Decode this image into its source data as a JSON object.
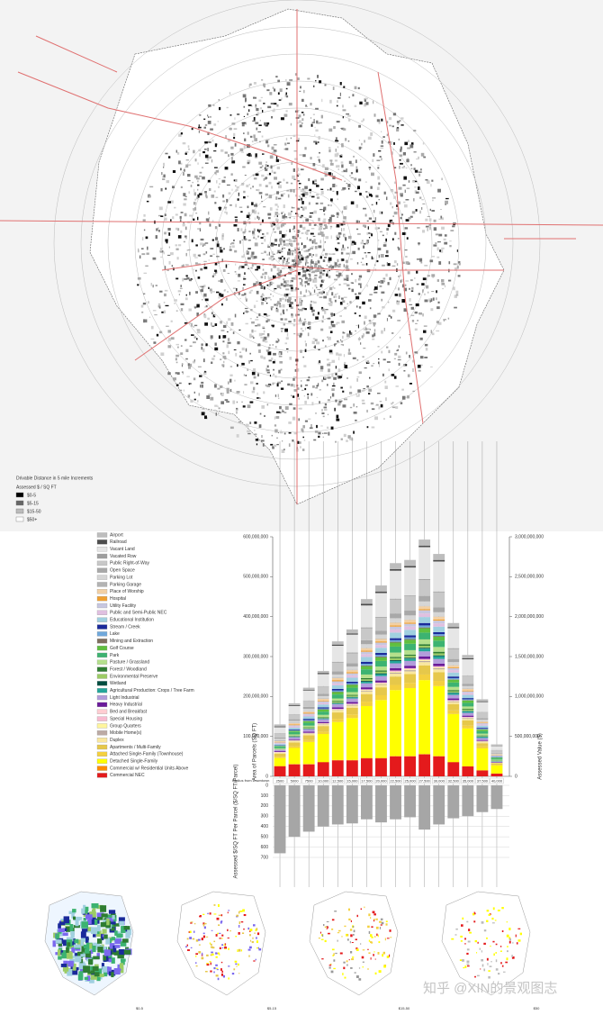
{
  "map": {
    "title": "Drivable Distance in 5 mile Increments",
    "legend_title": "Assessed $ / SQ FT",
    "legend": [
      "$0-5",
      "$5-15",
      "$15-50",
      "$50+"
    ]
  },
  "chart_data": [
    {
      "type": "bar",
      "stacked": true,
      "x_label": "Radius from Downtown",
      "y_label": "Area of Parcels (SQ FT)",
      "y2_label": "Assessed Value ($)",
      "categories": [
        "2500",
        "5000",
        "7500",
        "10,000",
        "12,500",
        "15,000",
        "17,500",
        "20,000",
        "22,500",
        "25,000",
        "27,500",
        "30,000",
        "32,500",
        "35,000",
        "37,500",
        "40,000"
      ],
      "series": [
        {
          "name": "Airport",
          "color": "#bdbdbd",
          "values": [
            5000000,
            5000000,
            5000000,
            5000000,
            8000000,
            10000000,
            12000000,
            15000000,
            15000000,
            15000000,
            15000000,
            15000000,
            10000000,
            8000000,
            5000000,
            3000000
          ]
        },
        {
          "name": "Railroad",
          "color": "#4d4d4d",
          "values": [
            2000000,
            2000000,
            2000000,
            3000000,
            3000000,
            3000000,
            4000000,
            4000000,
            4000000,
            4000000,
            4000000,
            4000000,
            3000000,
            3000000,
            2000000,
            1000000
          ]
        },
        {
          "name": "Vacant Land",
          "color": "#e6e6e6",
          "values": [
            15000000,
            20000000,
            25000000,
            30000000,
            40000000,
            45000000,
            55000000,
            60000000,
            70000000,
            70000000,
            80000000,
            75000000,
            50000000,
            40000000,
            25000000,
            10000000
          ]
        },
        {
          "name": "Vacated Row",
          "color": "#9e9e9e",
          "values": [
            1000000,
            1000000,
            1000000,
            1000000,
            2000000,
            2000000,
            2000000,
            2000000,
            2000000,
            2000000,
            2000000,
            2000000,
            2000000,
            1000000,
            1000000,
            1000000
          ]
        },
        {
          "name": "Public Right-of-Way",
          "color": "#c8c8c8",
          "values": [
            10000000,
            12000000,
            15000000,
            18000000,
            22000000,
            25000000,
            30000000,
            32000000,
            35000000,
            36000000,
            40000000,
            38000000,
            25000000,
            20000000,
            14000000,
            6000000
          ]
        },
        {
          "name": "Open Space",
          "color": "#a8a8a8",
          "values": [
            3000000,
            4000000,
            5000000,
            6000000,
            8000000,
            8000000,
            10000000,
            10000000,
            12000000,
            12000000,
            14000000,
            12000000,
            8000000,
            6000000,
            4000000,
            2000000
          ]
        },
        {
          "name": "Parking Lot",
          "color": "#d6d6d6",
          "values": [
            4000000,
            5000000,
            6000000,
            6000000,
            8000000,
            8000000,
            9000000,
            10000000,
            10000000,
            10000000,
            11000000,
            10000000,
            7000000,
            6000000,
            4000000,
            2000000
          ]
        },
        {
          "name": "Parking Garage",
          "color": "#b3b3b3",
          "values": [
            2000000,
            1000000,
            1000000,
            1000000,
            1000000,
            1000000,
            1000000,
            1000000,
            1000000,
            1000000,
            1000000,
            1000000,
            1000000,
            1000000,
            1000000,
            0
          ]
        },
        {
          "name": "Place of Worship",
          "color": "#f2d0a4",
          "values": [
            2000000,
            3000000,
            3000000,
            4000000,
            5000000,
            5000000,
            6000000,
            6000000,
            7000000,
            7000000,
            7000000,
            7000000,
            5000000,
            4000000,
            3000000,
            1000000
          ]
        },
        {
          "name": "Hospital",
          "color": "#f0a030",
          "values": [
            1000000,
            2000000,
            2000000,
            2000000,
            3000000,
            3000000,
            3000000,
            3000000,
            3000000,
            3000000,
            3000000,
            3000000,
            2000000,
            2000000,
            1000000,
            1000000
          ]
        },
        {
          "name": "Utility Facility",
          "color": "#c7c7e0",
          "values": [
            2000000,
            3000000,
            3000000,
            4000000,
            5000000,
            5000000,
            6000000,
            6000000,
            7000000,
            7000000,
            8000000,
            7000000,
            5000000,
            4000000,
            3000000,
            1000000
          ]
        },
        {
          "name": "Public and Semi-Public NEC",
          "color": "#e0c0e0",
          "values": [
            2000000,
            3000000,
            4000000,
            4000000,
            5000000,
            6000000,
            7000000,
            7000000,
            8000000,
            8000000,
            9000000,
            8000000,
            6000000,
            5000000,
            3000000,
            1000000
          ]
        },
        {
          "name": "Educational Institution",
          "color": "#a0d0e0",
          "values": [
            3000000,
            5000000,
            6000000,
            7000000,
            9000000,
            10000000,
            12000000,
            13000000,
            14000000,
            14000000,
            15000000,
            14000000,
            10000000,
            8000000,
            5000000,
            2000000
          ]
        },
        {
          "name": "Stream / Creek",
          "color": "#1a2a9a",
          "values": [
            1000000,
            2000000,
            3000000,
            3000000,
            4000000,
            4000000,
            5000000,
            5000000,
            5000000,
            5000000,
            6000000,
            5000000,
            4000000,
            3000000,
            2000000,
            1000000
          ]
        },
        {
          "name": "Lake",
          "color": "#6fa8dc",
          "values": [
            1000000,
            1000000,
            2000000,
            2000000,
            3000000,
            3000000,
            4000000,
            4000000,
            4000000,
            4000000,
            5000000,
            4000000,
            3000000,
            2000000,
            2000000,
            1000000
          ]
        },
        {
          "name": "Mining and Extraction",
          "color": "#7f6f5f",
          "values": [
            0,
            0,
            1000000,
            1000000,
            1000000,
            1000000,
            2000000,
            2000000,
            2000000,
            2000000,
            2000000,
            2000000,
            1000000,
            1000000,
            1000000,
            0
          ]
        },
        {
          "name": "Golf Course",
          "color": "#5fbf3f",
          "values": [
            2000000,
            3000000,
            4000000,
            5000000,
            6000000,
            7000000,
            8000000,
            9000000,
            10000000,
            10000000,
            11000000,
            10000000,
            7000000,
            6000000,
            4000000,
            2000000
          ]
        },
        {
          "name": "Park",
          "color": "#3cb371",
          "values": [
            4000000,
            6000000,
            7000000,
            8000000,
            10000000,
            11000000,
            13000000,
            14000000,
            15000000,
            16000000,
            17000000,
            16000000,
            11000000,
            9000000,
            6000000,
            3000000
          ]
        },
        {
          "name": "Pasture / Grassland",
          "color": "#b5e08c",
          "values": [
            2000000,
            3000000,
            4000000,
            5000000,
            6000000,
            7000000,
            9000000,
            10000000,
            11000000,
            11000000,
            12000000,
            12000000,
            8000000,
            6000000,
            4000000,
            2000000
          ]
        },
        {
          "name": "Forest / Woodland",
          "color": "#2e7d32",
          "values": [
            0,
            1000000,
            1000000,
            1000000,
            2000000,
            2000000,
            3000000,
            3000000,
            3000000,
            3000000,
            4000000,
            4000000,
            3000000,
            2000000,
            1000000,
            1000000
          ]
        },
        {
          "name": "Environmental Preserve",
          "color": "#9ccc65",
          "values": [
            1000000,
            1000000,
            2000000,
            2000000,
            3000000,
            3000000,
            4000000,
            4000000,
            5000000,
            5000000,
            5000000,
            5000000,
            3000000,
            3000000,
            2000000,
            1000000
          ]
        },
        {
          "name": "Wetland",
          "color": "#004d40",
          "values": [
            0,
            1000000,
            1000000,
            1000000,
            1000000,
            1000000,
            2000000,
            2000000,
            2000000,
            2000000,
            2000000,
            2000000,
            1000000,
            1000000,
            1000000,
            0
          ]
        },
        {
          "name": "Agricultural Production: Crops / Tree Farm",
          "color": "#26a69a",
          "values": [
            0,
            1000000,
            1000000,
            2000000,
            2000000,
            3000000,
            4000000,
            5000000,
            6000000,
            6000000,
            7000000,
            7000000,
            5000000,
            4000000,
            3000000,
            1000000
          ]
        },
        {
          "name": "Light Industrial",
          "color": "#b39ddb",
          "values": [
            4000000,
            5000000,
            6000000,
            7000000,
            8000000,
            9000000,
            10000000,
            11000000,
            12000000,
            12000000,
            13000000,
            12000000,
            9000000,
            7000000,
            5000000,
            2000000
          ]
        },
        {
          "name": "Heavy Industrial",
          "color": "#6a1b9a",
          "values": [
            2000000,
            2000000,
            3000000,
            3000000,
            4000000,
            4000000,
            5000000,
            5000000,
            6000000,
            6000000,
            6000000,
            6000000,
            4000000,
            3000000,
            2000000,
            1000000
          ]
        },
        {
          "name": "Bed and Breakfast",
          "color": "#ffcdd2",
          "values": [
            0,
            0,
            0,
            0,
            0,
            0,
            0,
            0,
            0,
            0,
            0,
            0,
            0,
            0,
            0,
            0
          ]
        },
        {
          "name": "Special Housing",
          "color": "#f8bbd0",
          "values": [
            1000000,
            1000000,
            1000000,
            1000000,
            2000000,
            2000000,
            2000000,
            2000000,
            3000000,
            3000000,
            3000000,
            3000000,
            2000000,
            2000000,
            1000000,
            0
          ]
        },
        {
          "name": "Group Quarters",
          "color": "#fff59d",
          "values": [
            1000000,
            1000000,
            1000000,
            1000000,
            1000000,
            1000000,
            2000000,
            2000000,
            2000000,
            2000000,
            2000000,
            2000000,
            1000000,
            1000000,
            1000000,
            0
          ]
        },
        {
          "name": "Mobile Home(s)",
          "color": "#bcaaa4",
          "values": [
            0,
            1000000,
            1000000,
            1000000,
            1000000,
            2000000,
            2000000,
            2000000,
            3000000,
            3000000,
            3000000,
            3000000,
            2000000,
            2000000,
            1000000,
            0
          ]
        },
        {
          "name": "Duplex",
          "color": "#f9e79f",
          "values": [
            2000000,
            3000000,
            3000000,
            4000000,
            5000000,
            5000000,
            6000000,
            6000000,
            7000000,
            7000000,
            8000000,
            7000000,
            5000000,
            4000000,
            3000000,
            1000000
          ]
        },
        {
          "name": "Apartments / Multi-Family",
          "color": "#e6c84a",
          "values": [
            8000000,
            10000000,
            12000000,
            14000000,
            16000000,
            17000000,
            19000000,
            20000000,
            21000000,
            22000000,
            23000000,
            22000000,
            16000000,
            13000000,
            8000000,
            4000000
          ]
        },
        {
          "name": "Attached Single-Family (Townhouse)",
          "color": "#f4d03f",
          "values": [
            3000000,
            4000000,
            5000000,
            6000000,
            8000000,
            9000000,
            11000000,
            12000000,
            13000000,
            13000000,
            14000000,
            13000000,
            9000000,
            7000000,
            5000000,
            2000000
          ]
        },
        {
          "name": "Detached Single-Family",
          "color": "#ffff00",
          "values": [
            20000000,
            40000000,
            55000000,
            70000000,
            95000000,
            105000000,
            130000000,
            145000000,
            165000000,
            170000000,
            185000000,
            175000000,
            120000000,
            95000000,
            55000000,
            20000000
          ]
        },
        {
          "name": "Commercial w/ Residential Units Above",
          "color": "#ff8c00",
          "values": [
            1000000,
            1000000,
            1000000,
            1000000,
            1000000,
            1000000,
            1000000,
            1000000,
            1000000,
            1000000,
            1000000,
            1000000,
            1000000,
            0,
            0,
            0
          ]
        },
        {
          "name": "Commercial NEC",
          "color": "#e41a1c",
          "values": [
            25000000,
            30000000,
            30000000,
            35000000,
            40000000,
            40000000,
            45000000,
            45000000,
            50000000,
            50000000,
            55000000,
            50000000,
            35000000,
            25000000,
            15000000,
            7000000
          ]
        }
      ],
      "ylim": [
        0,
        600000000
      ],
      "yticks": [
        0,
        {
          "value": 100000000,
          "label": "100,000,000"
        },
        {
          "value": 200000000,
          "label": "200,000,000"
        },
        {
          "value": 300000000,
          "label": "300,000,000"
        },
        {
          "value": 400000000,
          "label": "400,000,000"
        },
        {
          "value": 500000000,
          "label": "500,000,000"
        },
        {
          "value": 600000000,
          "label": "600,000,000"
        }
      ],
      "y2lim": [
        0,
        3000000000
      ],
      "y2ticks": [
        0,
        {
          "value": 500000000,
          "label": "500,000,000"
        },
        {
          "value": 1000000000,
          "label": "1,000,000,000"
        },
        {
          "value": 1500000000,
          "label": "1,500,000,000"
        },
        {
          "value": 2000000000,
          "label": "2,000,000,000"
        },
        {
          "value": 2500000000,
          "label": "2,500,000,000"
        },
        {
          "value": 3000000000,
          "label": "3,000,000,000"
        }
      ],
      "legend": "left"
    },
    {
      "type": "bar",
      "inverted": true,
      "y_label": "Assessed $/SQ FT Per Parcel ($/SQ FT/Parcel)",
      "color": "#a6a6a6",
      "values": [
        660,
        500,
        450,
        400,
        380,
        370,
        330,
        360,
        330,
        310,
        430,
        380,
        320,
        300,
        260,
        230
      ],
      "ylim": [
        0,
        700
      ],
      "yticks": [
        0,
        100,
        200,
        300,
        400,
        500,
        600,
        700
      ],
      "grid": true
    }
  ],
  "small_maps": [
    "$0-5",
    "$5-15",
    "$15-50",
    "$50"
  ],
  "watermark": "知乎 @XIN的景观图志"
}
